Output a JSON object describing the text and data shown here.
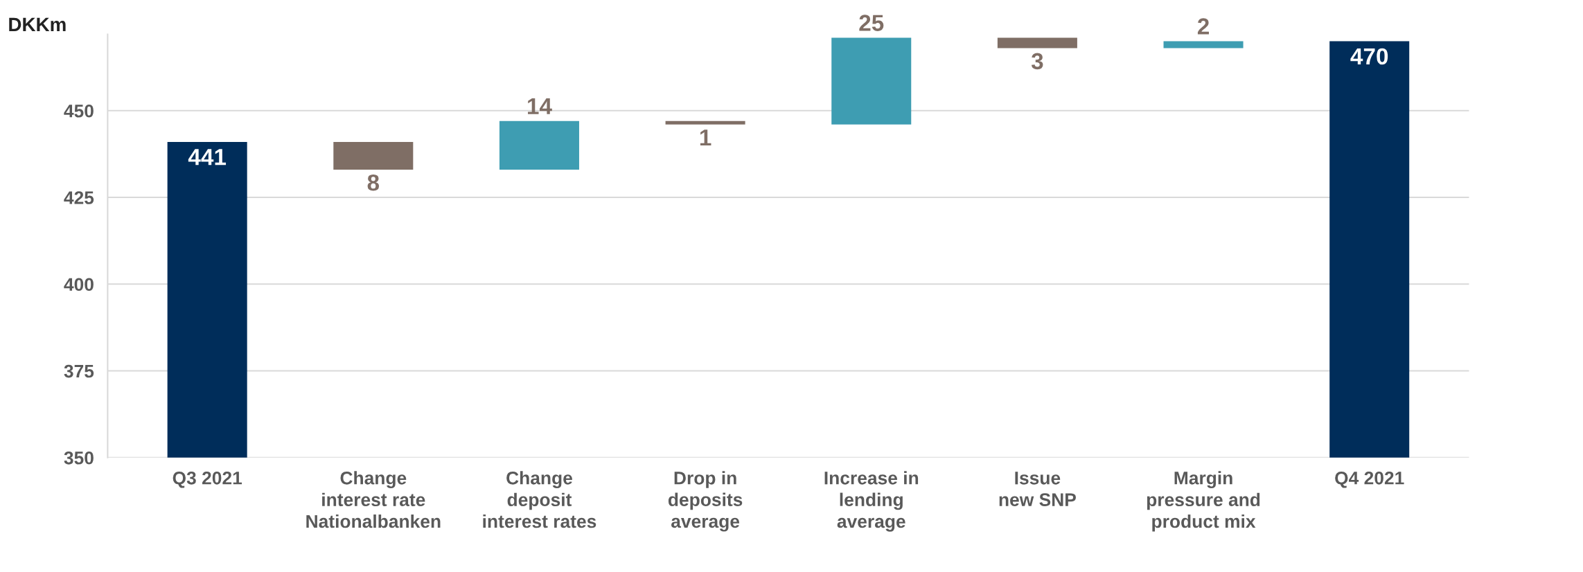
{
  "chart_data": {
    "type": "bar",
    "ylabel": "DKKm",
    "categories": [
      "Q3 2021",
      "Change\ninterest rate\nNationalbanken",
      "Change\ndeposit\ninterest rates",
      "Drop in\ndeposits\naverage",
      "Increase in\nlending\naverage",
      "Issue\nnew SNP",
      "Margin\npressure and\nproduct mix",
      "Q4 2021"
    ],
    "values": [
      441,
      -8,
      14,
      -1,
      25,
      -3,
      2,
      470
    ],
    "base": [
      null,
      441,
      433,
      447,
      446,
      471,
      468,
      null
    ],
    "colors": [
      "#002d5a",
      "#7f6e65",
      "#3e9db2",
      "#7f6e65",
      "#3e9db2",
      "#7f6e65",
      "#3e9db2",
      "#002d5a"
    ],
    "value_labels": [
      "441",
      "8",
      "14",
      "1",
      "25",
      "3",
      "2",
      "470"
    ],
    "ylim": [
      350,
      472
    ],
    "yticks": [
      350,
      375,
      400,
      425,
      450
    ],
    "grid": "y"
  }
}
